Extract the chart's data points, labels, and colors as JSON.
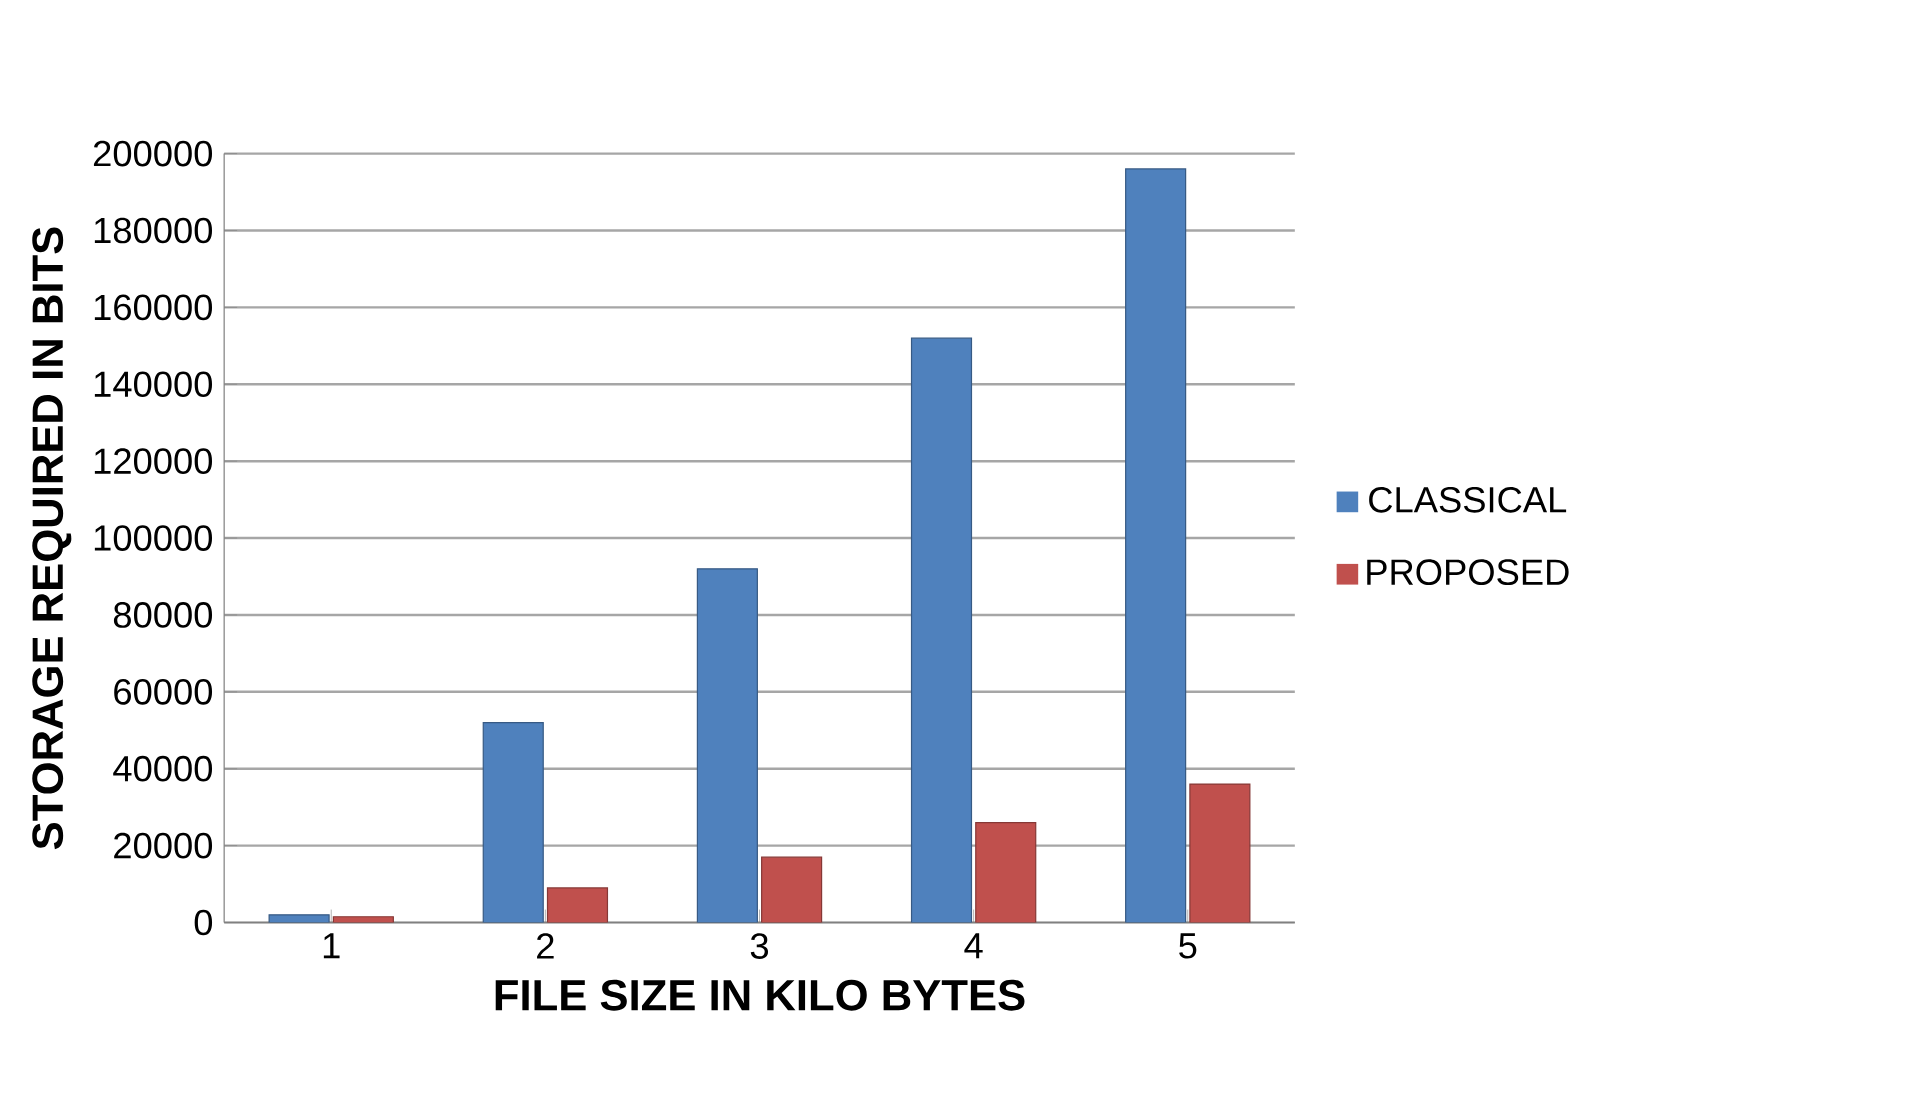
{
  "chart_data": {
    "type": "bar",
    "xlabel": "FILE SIZE IN KILO BYTES",
    "ylabel": "STORAGE REQUIRED IN BITS",
    "categories": [
      "1",
      "2",
      "3",
      "4",
      "5"
    ],
    "series": [
      {
        "name": "CLASSICAL",
        "color": "#4f81bd",
        "values": [
          2000,
          52000,
          92000,
          152000,
          196000
        ]
      },
      {
        "name": "PROPOSED",
        "color": "#c0504d",
        "values": [
          1500,
          9000,
          17000,
          26000,
          36000
        ]
      }
    ],
    "ylim": [
      0,
      200000
    ],
    "yticks": [
      0,
      20000,
      40000,
      60000,
      80000,
      100000,
      120000,
      140000,
      160000,
      180000,
      200000
    ],
    "grid": "y",
    "legend": "right"
  }
}
